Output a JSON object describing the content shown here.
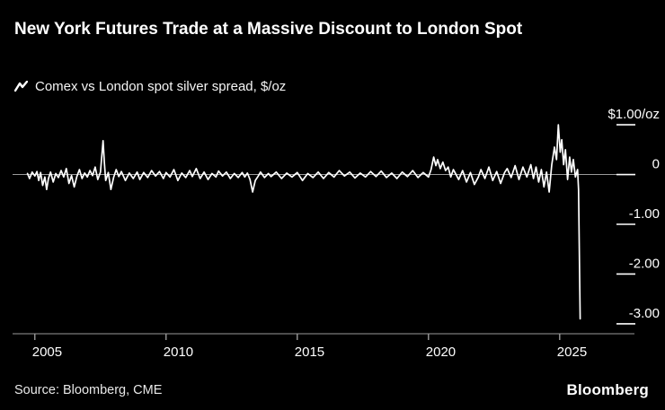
{
  "header": {
    "title": "New York Futures Trade at a Massive Discount to London Spot",
    "legend_label": "Comex vs London spot silver spread, $/oz"
  },
  "footer": {
    "source": "Source: Bloomberg, CME",
    "brand": "Bloomberg"
  },
  "colors": {
    "background": "#000000",
    "line": "#ffffff",
    "axis": "#9a9a9a",
    "text": "#ffffff"
  },
  "chart_data": {
    "type": "line",
    "title": "New York Futures Trade at a Massive Discount to London Spot",
    "legend": "Comex vs London spot silver spread, $/oz",
    "xlabel": "",
    "ylabel": "$/oz",
    "xlim": [
      2004.7,
      2026.0
    ],
    "ylim": [
      -3.2,
      1.2
    ],
    "grid": false,
    "legend_position": "top-left",
    "x_ticks": [
      2005,
      2010,
      2015,
      2020,
      2025
    ],
    "y_ticks": [
      {
        "label": "$1.00/oz",
        "value": 1.0
      },
      {
        "label": "0",
        "value": 0
      },
      {
        "label": "-1.00",
        "value": -1.0
      },
      {
        "label": "-2.00",
        "value": -2.0
      },
      {
        "label": "-3.00",
        "value": -3.0
      }
    ],
    "series_name": "Comex vs London spot silver spread ($/oz)",
    "points": [
      [
        2004.72,
        0.02
      ],
      [
        2004.8,
        -0.08
      ],
      [
        2004.9,
        0.05
      ],
      [
        2005.0,
        -0.03
      ],
      [
        2005.08,
        0.06
      ],
      [
        2005.15,
        -0.12
      ],
      [
        2005.22,
        0.04
      ],
      [
        2005.3,
        -0.22
      ],
      [
        2005.38,
        -0.05
      ],
      [
        2005.45,
        -0.3
      ],
      [
        2005.52,
        -0.08
      ],
      [
        2005.6,
        0.05
      ],
      [
        2005.7,
        -0.15
      ],
      [
        2005.8,
        0.02
      ],
      [
        2005.9,
        -0.06
      ],
      [
        2006.0,
        0.08
      ],
      [
        2006.1,
        -0.05
      ],
      [
        2006.2,
        0.12
      ],
      [
        2006.3,
        -0.18
      ],
      [
        2006.4,
        -0.02
      ],
      [
        2006.5,
        -0.25
      ],
      [
        2006.6,
        -0.04
      ],
      [
        2006.7,
        0.1
      ],
      [
        2006.8,
        -0.08
      ],
      [
        2006.9,
        0.03
      ],
      [
        2007.0,
        -0.05
      ],
      [
        2007.1,
        0.08
      ],
      [
        2007.2,
        -0.02
      ],
      [
        2007.3,
        0.15
      ],
      [
        2007.4,
        -0.1
      ],
      [
        2007.5,
        0.05
      ],
      [
        2007.6,
        0.68
      ],
      [
        2007.65,
        0.25
      ],
      [
        2007.7,
        -0.12
      ],
      [
        2007.8,
        0.04
      ],
      [
        2007.9,
        -0.3
      ],
      [
        2008.0,
        -0.06
      ],
      [
        2008.1,
        0.1
      ],
      [
        2008.2,
        -0.04
      ],
      [
        2008.3,
        0.06
      ],
      [
        2008.45,
        -0.12
      ],
      [
        2008.6,
        0.03
      ],
      [
        2008.75,
        -0.08
      ],
      [
        2008.9,
        0.05
      ],
      [
        2009.0,
        -0.1
      ],
      [
        2009.15,
        0.04
      ],
      [
        2009.3,
        -0.06
      ],
      [
        2009.45,
        0.08
      ],
      [
        2009.6,
        -0.03
      ],
      [
        2009.75,
        0.06
      ],
      [
        2009.9,
        -0.08
      ],
      [
        2010.0,
        0.04
      ],
      [
        2010.15,
        -0.05
      ],
      [
        2010.3,
        0.1
      ],
      [
        2010.45,
        -0.12
      ],
      [
        2010.6,
        0.03
      ],
      [
        2010.75,
        -0.06
      ],
      [
        2010.9,
        0.08
      ],
      [
        2011.0,
        -0.04
      ],
      [
        2011.15,
        0.12
      ],
      [
        2011.3,
        -0.08
      ],
      [
        2011.45,
        0.05
      ],
      [
        2011.6,
        -0.1
      ],
      [
        2011.75,
        0.02
      ],
      [
        2011.9,
        -0.05
      ],
      [
        2012.0,
        0.07
      ],
      [
        2012.15,
        -0.03
      ],
      [
        2012.3,
        0.05
      ],
      [
        2012.45,
        -0.08
      ],
      [
        2012.6,
        0.02
      ],
      [
        2012.75,
        -0.06
      ],
      [
        2012.9,
        0.04
      ],
      [
        2013.0,
        -0.05
      ],
      [
        2013.1,
        0.03
      ],
      [
        2013.2,
        -0.1
      ],
      [
        2013.3,
        -0.35
      ],
      [
        2013.4,
        -0.12
      ],
      [
        2013.5,
        -0.04
      ],
      [
        2013.6,
        0.05
      ],
      [
        2013.75,
        -0.06
      ],
      [
        2013.9,
        0.02
      ],
      [
        2014.0,
        -0.04
      ],
      [
        2014.2,
        0.05
      ],
      [
        2014.4,
        -0.08
      ],
      [
        2014.6,
        0.03
      ],
      [
        2014.8,
        -0.05
      ],
      [
        2015.0,
        0.04
      ],
      [
        2015.2,
        -0.12
      ],
      [
        2015.4,
        0.02
      ],
      [
        2015.6,
        -0.06
      ],
      [
        2015.8,
        0.05
      ],
      [
        2016.0,
        -0.08
      ],
      [
        2016.2,
        0.04
      ],
      [
        2016.4,
        -0.05
      ],
      [
        2016.6,
        0.08
      ],
      [
        2016.8,
        -0.03
      ],
      [
        2017.0,
        0.05
      ],
      [
        2017.2,
        -0.07
      ],
      [
        2017.4,
        0.03
      ],
      [
        2017.6,
        -0.05
      ],
      [
        2017.8,
        0.06
      ],
      [
        2018.0,
        -0.04
      ],
      [
        2018.2,
        0.07
      ],
      [
        2018.4,
        -0.06
      ],
      [
        2018.6,
        0.03
      ],
      [
        2018.8,
        -0.08
      ],
      [
        2019.0,
        0.05
      ],
      [
        2019.2,
        -0.04
      ],
      [
        2019.4,
        0.08
      ],
      [
        2019.6,
        -0.06
      ],
      [
        2019.8,
        0.04
      ],
      [
        2020.0,
        -0.05
      ],
      [
        2020.1,
        0.1
      ],
      [
        2020.2,
        0.35
      ],
      [
        2020.28,
        0.18
      ],
      [
        2020.35,
        0.3
      ],
      [
        2020.45,
        0.12
      ],
      [
        2020.55,
        0.25
      ],
      [
        2020.65,
        0.08
      ],
      [
        2020.75,
        0.15
      ],
      [
        2020.85,
        -0.05
      ],
      [
        2020.95,
        0.1
      ],
      [
        2021.0,
        0.05
      ],
      [
        2021.15,
        -0.1
      ],
      [
        2021.3,
        0.08
      ],
      [
        2021.45,
        -0.15
      ],
      [
        2021.6,
        0.04
      ],
      [
        2021.75,
        -0.2
      ],
      [
        2021.9,
        -0.05
      ],
      [
        2022.0,
        0.1
      ],
      [
        2022.15,
        -0.08
      ],
      [
        2022.3,
        0.15
      ],
      [
        2022.45,
        -0.12
      ],
      [
        2022.6,
        0.06
      ],
      [
        2022.75,
        -0.18
      ],
      [
        2022.9,
        0.04
      ],
      [
        2023.0,
        0.12
      ],
      [
        2023.15,
        -0.06
      ],
      [
        2023.3,
        0.18
      ],
      [
        2023.45,
        -0.1
      ],
      [
        2023.6,
        0.15
      ],
      [
        2023.75,
        -0.05
      ],
      [
        2023.9,
        0.2
      ],
      [
        2024.0,
        -0.08
      ],
      [
        2024.1,
        0.15
      ],
      [
        2024.2,
        -0.15
      ],
      [
        2024.3,
        0.1
      ],
      [
        2024.4,
        -0.25
      ],
      [
        2024.5,
        0.05
      ],
      [
        2024.6,
        -0.35
      ],
      [
        2024.7,
        0.2
      ],
      [
        2024.8,
        0.55
      ],
      [
        2024.88,
        0.3
      ],
      [
        2024.95,
        1.0
      ],
      [
        2025.02,
        0.45
      ],
      [
        2025.08,
        0.7
      ],
      [
        2025.15,
        0.2
      ],
      [
        2025.22,
        0.5
      ],
      [
        2025.3,
        -0.1
      ],
      [
        2025.38,
        0.35
      ],
      [
        2025.45,
        0.05
      ],
      [
        2025.52,
        0.3
      ],
      [
        2025.6,
        -0.05
      ],
      [
        2025.68,
        0.1
      ],
      [
        2025.72,
        -0.3
      ],
      [
        2025.78,
        -2.9
      ]
    ]
  }
}
